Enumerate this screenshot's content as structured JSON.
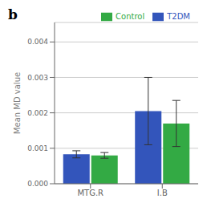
{
  "chart_data": {
    "type": "bar",
    "annotations": [
      "b"
    ],
    "categories": [
      "MTG.R",
      "I.B"
    ],
    "series": [
      {
        "name": "T2DM",
        "color": "#3355bb",
        "values": [
          0.00083,
          0.00205
        ],
        "errors": [
          0.0001,
          0.00095
        ]
      },
      {
        "name": "Control",
        "color": "#33aa44",
        "values": [
          0.0008,
          0.0017
        ],
        "errors": [
          8e-05,
          0.00065
        ]
      }
    ],
    "ylabel": "Mean MD value",
    "ylim": [
      0,
      0.00455
    ],
    "yticks": [
      {
        "value": 0.0,
        "label": "0.000"
      },
      {
        "value": 0.001,
        "label": "0.001"
      },
      {
        "value": 0.002,
        "label": "0.002"
      },
      {
        "value": 0.003,
        "label": "0.003"
      },
      {
        "value": 0.004,
        "label": "0.004"
      }
    ],
    "grid": true,
    "legend": "upper right"
  }
}
